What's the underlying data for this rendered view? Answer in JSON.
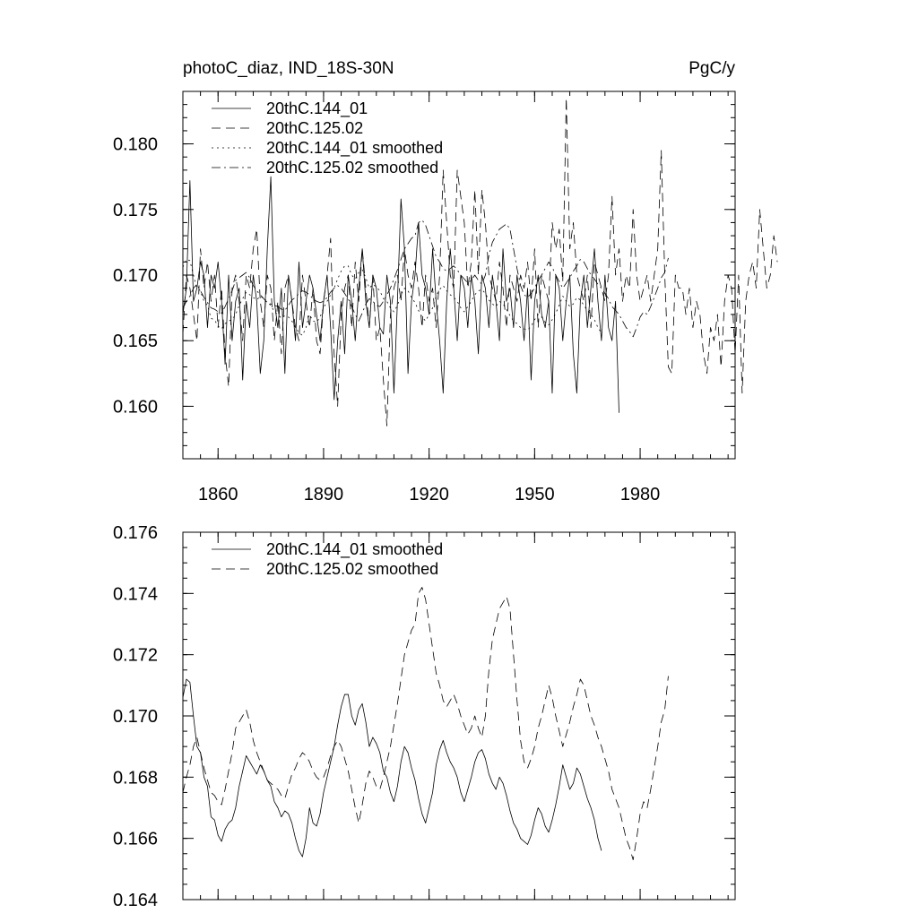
{
  "chart_data": [
    {
      "type": "line",
      "title_left": "photoC_diaz, IND_18S-30N",
      "title_right": "PgC/y",
      "xlim": [
        1850,
        2007
      ],
      "ylim": [
        0.156,
        0.184
      ],
      "xticks": [
        1860,
        1890,
        1920,
        1950,
        1980
      ],
      "xtick_labels": [
        "1860",
        "1890",
        "1920",
        "1950",
        "1980"
      ],
      "yticks": [
        0.16,
        0.165,
        0.17,
        0.175,
        0.18
      ],
      "ytick_labels": [
        "0.160",
        "0.165",
        "0.170",
        "0.175",
        "0.180"
      ],
      "legend": [
        {
          "name": "20thC.144_01",
          "dash": "solid"
        },
        {
          "name": "20thC.125.02",
          "dash": "dash"
        },
        {
          "name": "20thC.144_01 smoothed",
          "dash": "dot"
        },
        {
          "name": "20thC.125.02 smoothed",
          "dash": "dashdot"
        }
      ],
      "series": [
        {
          "name": "20thC.144_01",
          "dash": "solid",
          "start": 1850,
          "values": [
            0.167,
            0.169,
            0.1772,
            0.168,
            0.169,
            0.171,
            0.17,
            0.166,
            0.17,
            0.169,
            0.171,
            0.168,
            0.1632,
            0.17,
            0.165,
            0.168,
            0.169,
            0.162,
            0.168,
            0.166,
            0.17,
            0.168,
            0.1625,
            0.165,
            0.172,
            0.1775,
            0.168,
            0.166,
            0.169,
            0.1625,
            0.17,
            0.168,
            0.165,
            0.171,
            0.166,
            0.168,
            0.17,
            0.169,
            0.167,
            0.165,
            0.168,
            0.17,
            0.166,
            0.1605,
            0.165,
            0.168,
            0.164,
            0.17,
            0.168,
            0.165,
            0.169,
            0.172,
            0.168,
            0.166,
            0.17,
            0.169,
            0.166,
            0.1655,
            0.17,
            0.168,
            0.161,
            0.168,
            0.1758,
            0.172,
            0.1625,
            0.168,
            0.17,
            0.174,
            0.17,
            0.169,
            0.167,
            0.172,
            0.168,
            0.165,
            0.161,
            0.168,
            0.172,
            0.169,
            0.165,
            0.17,
            0.169,
            0.166,
            0.17,
            0.168,
            0.164,
            0.17,
            0.169,
            0.166,
            0.17,
            0.168,
            0.165,
            0.172,
            0.168,
            0.169,
            0.166,
            0.17,
            0.168,
            0.165,
            0.169,
            0.162,
            0.168,
            0.17,
            0.167,
            0.166,
            0.168,
            0.161,
            0.17,
            0.169,
            0.165,
            0.168,
            0.17,
            0.164,
            0.161,
            0.168,
            0.17,
            0.166,
            0.169,
            0.172,
            0.168,
            0.165,
            0.17,
            0.166,
            0.165,
            0.168,
            0.1595
          ]
        },
        {
          "name": "20thC.125.02",
          "dash": "dash",
          "start": 1850,
          "values": [
            0.1655,
            0.17,
            0.169,
            0.167,
            0.165,
            0.172,
            0.169,
            0.171,
            0.168,
            0.17,
            0.166,
            0.169,
            0.164,
            0.1615,
            0.169,
            0.17,
            0.168,
            0.165,
            0.17,
            0.169,
            0.172,
            0.1735,
            0.168,
            0.166,
            0.17,
            0.169,
            0.165,
            0.168,
            0.164,
            0.169,
            0.17,
            0.168,
            0.166,
            0.165,
            0.17,
            0.168,
            0.166,
            0.169,
            0.165,
            0.164,
            0.168,
            0.17,
            0.1728,
            0.164,
            0.16,
            0.167,
            0.169,
            0.17,
            0.166,
            0.171,
            0.168,
            0.172,
            0.169,
            0.166,
            0.17,
            0.165,
            0.166,
            0.162,
            0.1585,
            0.167,
            0.169,
            0.17,
            0.168,
            0.172,
            0.17,
            0.169,
            0.171,
            0.169,
            0.166,
            0.17,
            0.168,
            0.169,
            0.166,
            0.17,
            0.178,
            0.174,
            0.17,
            0.169,
            0.178,
            0.176,
            0.174,
            0.169,
            0.171,
            0.1765,
            0.17,
            0.1765,
            0.174,
            0.17,
            0.169,
            0.168,
            0.171,
            0.169,
            0.166,
            0.17,
            0.169,
            0.168,
            0.17,
            0.169,
            0.171,
            0.168,
            0.172,
            0.166,
            0.17,
            0.169,
            0.168,
            0.174,
            0.172,
            0.1735,
            0.1695,
            0.1835,
            0.172,
            0.174,
            0.17,
            0.169,
            0.168,
            0.17,
            0.166,
            0.171,
            0.17,
            0.169,
            0.168,
            0.17,
            0.176,
            0.17,
            0.172,
            0.168,
            0.17,
            0.169,
            0.175,
            0.17,
            0.168,
            0.169,
            0.17,
            0.168,
            0.17,
            0.172,
            0.1795,
            0.17,
            0.163,
            0.1625,
            0.17,
            0.169,
            0.169,
            0.167,
            0.169,
            0.166,
            0.168,
            0.167,
            0.164,
            0.1625,
            0.166,
            0.165,
            0.167,
            0.163,
            0.168,
            0.17,
            0.169,
            0.164,
            0.17,
            0.161,
            0.168,
            0.17,
            0.171,
            0.169,
            0.175,
            0.172,
            0.169,
            0.17,
            0.173,
            0.171
          ]
        },
        {
          "name": "20thC.144_01 smoothed",
          "dash": "dot",
          "start": 1850,
          "values": [
            0.1706,
            0.1712,
            0.1711,
            0.17,
            0.169,
            0.1688,
            0.168,
            0.1677,
            0.1667,
            0.1666,
            0.1661,
            0.1659,
            0.1663,
            0.1665,
            0.1666,
            0.167,
            0.1677,
            0.1682,
            0.1687,
            0.1685,
            0.1683,
            0.1681,
            0.1684,
            0.1682,
            0.1679,
            0.1677,
            0.1672,
            0.167,
            0.1667,
            0.1669,
            0.1668,
            0.1665,
            0.166,
            0.1656,
            0.1654,
            0.166,
            0.167,
            0.1665,
            0.1664,
            0.1668,
            0.1675,
            0.168,
            0.1685,
            0.169,
            0.1697,
            0.1703,
            0.1707,
            0.1707,
            0.17,
            0.1697,
            0.1702,
            0.1704,
            0.1698,
            0.169,
            0.1693,
            0.1691,
            0.1688,
            0.1682,
            0.168,
            0.1675,
            0.1672,
            0.1677,
            0.1685,
            0.169,
            0.1688,
            0.1683,
            0.1679,
            0.1673,
            0.1668,
            0.1665,
            0.167,
            0.1675,
            0.1684,
            0.1689,
            0.1692,
            0.1688,
            0.1685,
            0.1683,
            0.168,
            0.1675,
            0.1672,
            0.1676,
            0.168,
            0.1685,
            0.1688,
            0.1689,
            0.1686,
            0.1681,
            0.1678,
            0.1676,
            0.168,
            0.1678,
            0.1674,
            0.1669,
            0.1665,
            0.1663,
            0.166,
            0.1659,
            0.1658,
            0.1661,
            0.1666,
            0.167,
            0.1668,
            0.1664,
            0.1662,
            0.1666,
            0.1671,
            0.1677,
            0.1684,
            0.168,
            0.1676,
            0.1678,
            0.1683,
            0.1681,
            0.1677,
            0.1673,
            0.167,
            0.1666,
            0.166,
            0.1656
          ]
        },
        {
          "name": "20thC.125.02 smoothed",
          "dash": "dashdot",
          "start": 1850,
          "values": [
            0.1675,
            0.168,
            0.1684,
            0.169,
            0.1693,
            0.1688,
            0.1683,
            0.1679,
            0.1675,
            0.1674,
            0.1672,
            0.1671,
            0.1676,
            0.1682,
            0.1688,
            0.1696,
            0.1698,
            0.17,
            0.1702,
            0.1698,
            0.1692,
            0.1688,
            0.1685,
            0.1682,
            0.1679,
            0.1678,
            0.1677,
            0.1676,
            0.1674,
            0.1673,
            0.1677,
            0.1681,
            0.1683,
            0.1686,
            0.1688,
            0.1687,
            0.1685,
            0.1682,
            0.168,
            0.1679,
            0.168,
            0.1683,
            0.1687,
            0.169,
            0.1692,
            0.169,
            0.1686,
            0.1682,
            0.1676,
            0.167,
            0.1665,
            0.1671,
            0.1678,
            0.1682,
            0.168,
            0.1677,
            0.1676,
            0.168,
            0.1685,
            0.169,
            0.1697,
            0.1704,
            0.1712,
            0.172,
            0.1724,
            0.1728,
            0.173,
            0.174,
            0.1742,
            0.1738,
            0.173,
            0.1722,
            0.1714,
            0.171,
            0.1705,
            0.1703,
            0.1705,
            0.1707,
            0.1704,
            0.17,
            0.1697,
            0.1694,
            0.1696,
            0.17,
            0.1696,
            0.1693,
            0.17,
            0.1715,
            0.1725,
            0.173,
            0.1735,
            0.1737,
            0.1739,
            0.1735,
            0.172,
            0.1705,
            0.1692,
            0.1685,
            0.1683,
            0.1686,
            0.169,
            0.1696,
            0.17,
            0.1705,
            0.171,
            0.1706,
            0.17,
            0.1695,
            0.169,
            0.1694,
            0.1698,
            0.1703,
            0.1707,
            0.1712,
            0.171,
            0.1705,
            0.17,
            0.1697,
            0.1693,
            0.169,
            0.1686,
            0.1682,
            0.1676,
            0.1673,
            0.167,
            0.1665,
            0.166,
            0.1657,
            0.1653,
            0.166,
            0.1668,
            0.1672,
            0.167,
            0.1676,
            0.1683,
            0.169,
            0.1698,
            0.1702,
            0.1713
          ]
        }
      ]
    },
    {
      "type": "line",
      "xlim": [
        1850,
        2007
      ],
      "ylim": [
        0.164,
        0.176
      ],
      "xticks": [
        1860,
        1890,
        1920,
        1950,
        1980
      ],
      "yticks": [
        0.164,
        0.166,
        0.168,
        0.17,
        0.172,
        0.174,
        0.176
      ],
      "ytick_labels": [
        "0.164",
        "0.166",
        "0.168",
        "0.170",
        "0.172",
        "0.174",
        "0.176"
      ],
      "legend": [
        {
          "name": "20thC.144_01 smoothed",
          "dash": "solid"
        },
        {
          "name": "20thC.125.02 smoothed",
          "dash": "dash"
        }
      ],
      "series": [
        {
          "name": "20thC.144_01 smoothed",
          "dash": "solid",
          "start": 1850,
          "values": [
            0.1706,
            0.1712,
            0.1711,
            0.17,
            0.169,
            0.1688,
            0.168,
            0.1677,
            0.1667,
            0.1666,
            0.1661,
            0.1659,
            0.1663,
            0.1665,
            0.1666,
            0.167,
            0.1677,
            0.1682,
            0.1687,
            0.1685,
            0.1683,
            0.1681,
            0.1684,
            0.1682,
            0.1679,
            0.1677,
            0.1672,
            0.167,
            0.1667,
            0.1669,
            0.1668,
            0.1665,
            0.166,
            0.1656,
            0.1654,
            0.166,
            0.167,
            0.1665,
            0.1664,
            0.1668,
            0.1675,
            0.168,
            0.1685,
            0.169,
            0.1697,
            0.1703,
            0.1707,
            0.1707,
            0.17,
            0.1697,
            0.1702,
            0.1704,
            0.1698,
            0.169,
            0.1693,
            0.1691,
            0.1688,
            0.1682,
            0.168,
            0.1675,
            0.1672,
            0.1677,
            0.1685,
            0.169,
            0.1688,
            0.1683,
            0.1679,
            0.1673,
            0.1668,
            0.1665,
            0.167,
            0.1675,
            0.1684,
            0.1689,
            0.1692,
            0.1688,
            0.1685,
            0.1683,
            0.168,
            0.1675,
            0.1672,
            0.1676,
            0.168,
            0.1685,
            0.1688,
            0.1689,
            0.1686,
            0.1681,
            0.1678,
            0.1676,
            0.168,
            0.1678,
            0.1674,
            0.1669,
            0.1665,
            0.1663,
            0.166,
            0.1659,
            0.1658,
            0.1661,
            0.1666,
            0.167,
            0.1668,
            0.1664,
            0.1662,
            0.1666,
            0.1671,
            0.1677,
            0.1684,
            0.168,
            0.1676,
            0.1678,
            0.1683,
            0.1681,
            0.1677,
            0.1673,
            0.167,
            0.1666,
            0.166,
            0.1656
          ]
        },
        {
          "name": "20thC.125.02 smoothed",
          "dash": "dash",
          "start": 1850,
          "values": [
            0.1675,
            0.168,
            0.1684,
            0.169,
            0.1693,
            0.1688,
            0.1683,
            0.1679,
            0.1675,
            0.1674,
            0.1672,
            0.1671,
            0.1676,
            0.1682,
            0.1688,
            0.1696,
            0.1698,
            0.17,
            0.1702,
            0.1698,
            0.1692,
            0.1688,
            0.1685,
            0.1682,
            0.1679,
            0.1678,
            0.1677,
            0.1676,
            0.1674,
            0.1673,
            0.1677,
            0.1681,
            0.1683,
            0.1686,
            0.1688,
            0.1687,
            0.1685,
            0.1682,
            0.168,
            0.1679,
            0.168,
            0.1683,
            0.1687,
            0.169,
            0.1692,
            0.169,
            0.1686,
            0.1682,
            0.1676,
            0.167,
            0.1665,
            0.1671,
            0.1678,
            0.1682,
            0.168,
            0.1677,
            0.1676,
            0.168,
            0.1685,
            0.169,
            0.1697,
            0.1704,
            0.1712,
            0.172,
            0.1724,
            0.1728,
            0.173,
            0.174,
            0.1742,
            0.1738,
            0.173,
            0.1722,
            0.1714,
            0.171,
            0.1705,
            0.1703,
            0.1705,
            0.1707,
            0.1704,
            0.17,
            0.1697,
            0.1694,
            0.1696,
            0.17,
            0.1696,
            0.1693,
            0.17,
            0.1715,
            0.1725,
            0.173,
            0.1735,
            0.1737,
            0.1739,
            0.1735,
            0.172,
            0.1705,
            0.1692,
            0.1685,
            0.1683,
            0.1686,
            0.169,
            0.1696,
            0.17,
            0.1705,
            0.171,
            0.1706,
            0.17,
            0.1695,
            0.169,
            0.1694,
            0.1698,
            0.1703,
            0.1707,
            0.1712,
            0.171,
            0.1705,
            0.17,
            0.1697,
            0.1693,
            0.169,
            0.1686,
            0.1682,
            0.1676,
            0.1673,
            0.167,
            0.1665,
            0.166,
            0.1657,
            0.1653,
            0.166,
            0.1668,
            0.1672,
            0.167,
            0.1676,
            0.1683,
            0.169,
            0.1698,
            0.1702,
            0.1713
          ]
        }
      ]
    }
  ]
}
